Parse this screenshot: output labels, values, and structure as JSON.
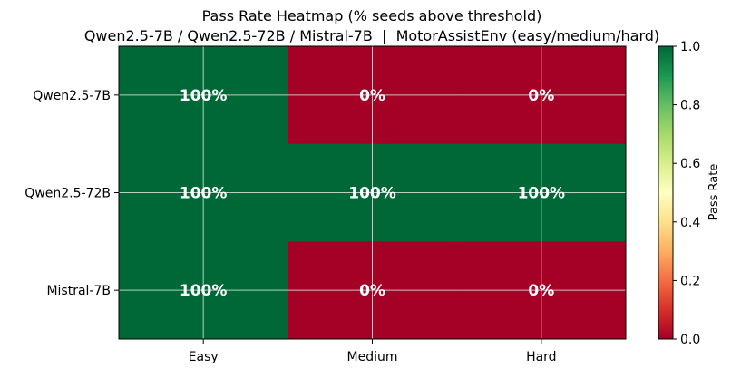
{
  "chart_data": {
    "type": "heatmap",
    "title": "Pass Rate Heatmap (% seeds above threshold)",
    "subtitle": "Qwen2.5-7B / Qwen2.5-72B / Mistral-7B  |  MotorAssistEnv (easy/medium/hard)",
    "x_categories": [
      "Easy",
      "Medium",
      "Hard"
    ],
    "y_categories": [
      "Qwen2.5-7B",
      "Qwen2.5-72B",
      "Mistral-7B"
    ],
    "values": [
      [
        1,
        0,
        0
      ],
      [
        1,
        1,
        1
      ],
      [
        1,
        0,
        0
      ]
    ],
    "cell_labels": [
      [
        "100%",
        "0%",
        "0%"
      ],
      [
        "100%",
        "100%",
        "100%"
      ],
      [
        "100%",
        "0%",
        "0%"
      ]
    ],
    "colormap": "RdYlGn",
    "vmin": 0,
    "vmax": 1,
    "grid": true,
    "colorbar": {
      "label": "Pass Rate",
      "ticks": [
        "0.0",
        "0.2",
        "0.4",
        "0.6",
        "0.8",
        "1.0"
      ],
      "tick_values": [
        0,
        0.2,
        0.4,
        0.6,
        0.8,
        1.0
      ]
    }
  }
}
